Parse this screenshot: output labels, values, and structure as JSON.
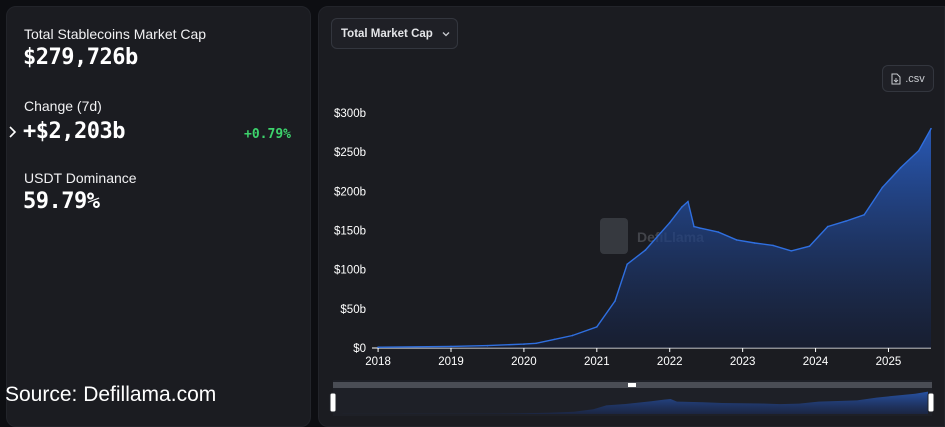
{
  "summary": {
    "market_cap_label": "Total Stablecoins Market Cap",
    "market_cap_value": "$279,726b",
    "change_label": "Change (7d)",
    "change_value": "+$2,203b",
    "change_percent": "+0.79%",
    "dominance_label": "USDT Dominance",
    "dominance_value": "59.79%"
  },
  "source_note": "Source: Defillama.com",
  "controls": {
    "metric_select": "Total Market Cap",
    "csv_label": ".csv"
  },
  "watermark": "DefiLlama",
  "colors": {
    "line": "#2f6fe0",
    "positive": "#3dd36c",
    "panel": "#1b1c21"
  },
  "chart_data": {
    "type": "area",
    "x": [
      "2018-01",
      "2019-01",
      "2019-07",
      "2020-01",
      "2020-03",
      "2020-06",
      "2020-09",
      "2021-01",
      "2021-04",
      "2021-06",
      "2021-09",
      "2022-01",
      "2022-03",
      "2022-04",
      "2022-05",
      "2022-06",
      "2022-09",
      "2022-12",
      "2023-03",
      "2023-06",
      "2023-09",
      "2023-12",
      "2024-03",
      "2024-06",
      "2024-09",
      "2024-12",
      "2025-03",
      "2025-06",
      "2025-08"
    ],
    "series": [
      {
        "values": [
          1,
          2,
          3,
          5,
          6,
          11,
          16,
          27,
          60,
          107,
          125,
          160,
          180,
          187,
          155,
          153,
          148,
          138,
          134,
          131,
          124,
          130,
          155,
          162,
          170,
          205,
          230,
          252,
          280
        ]
      }
    ],
    "xticks": [
      "2018",
      "2019",
      "2020",
      "2021",
      "2022",
      "2023",
      "2024",
      "2025"
    ],
    "yticks": [
      "$0",
      "$50b",
      "$100b",
      "$150b",
      "$200b",
      "$250b",
      "$300b"
    ],
    "ylim": [
      0,
      300
    ],
    "xlim": [
      "2017-12",
      "2025-08"
    ],
    "grid": false,
    "legend": "none"
  }
}
